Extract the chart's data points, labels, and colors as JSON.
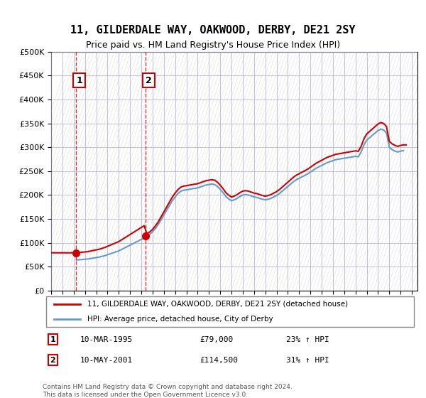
{
  "title": "11, GILDERDALE WAY, OAKWOOD, DERBY, DE21 2SY",
  "subtitle": "Price paid vs. HM Land Registry's House Price Index (HPI)",
  "ylabel": "",
  "ylim": [
    0,
    500000
  ],
  "yticks": [
    0,
    50000,
    100000,
    150000,
    200000,
    250000,
    300000,
    350000,
    400000,
    450000,
    500000
  ],
  "xlim_start": 1993.0,
  "xlim_end": 2025.5,
  "transaction1_year": 1995.19,
  "transaction1_price": 79000,
  "transaction1_label": "1",
  "transaction1_date": "10-MAR-1995",
  "transaction1_hpi": "23% ↑ HPI",
  "transaction2_year": 2001.36,
  "transaction2_price": 114500,
  "transaction2_label": "2",
  "transaction2_date": "10-MAY-2001",
  "transaction2_hpi": "31% ↑ HPI",
  "legend_line1": "11, GILDERDALE WAY, OAKWOOD, DERBY, DE21 2SY (detached house)",
  "legend_line2": "HPI: Average price, detached house, City of Derby",
  "footer": "Contains HM Land Registry data © Crown copyright and database right 2024.\nThis data is licensed under the Open Government Licence v3.0.",
  "table_row1": "1    10-MAR-1995         £79,000        23% ↑ HPI",
  "table_row2": "2    10-MAY-2001         £114,500      31% ↑ HPI",
  "line_color_price": "#cc0000",
  "line_color_hpi": "#6699cc",
  "dashed_color": "#cc0000",
  "background_color": "#ffffff",
  "hatch_color": "#cccccc"
}
